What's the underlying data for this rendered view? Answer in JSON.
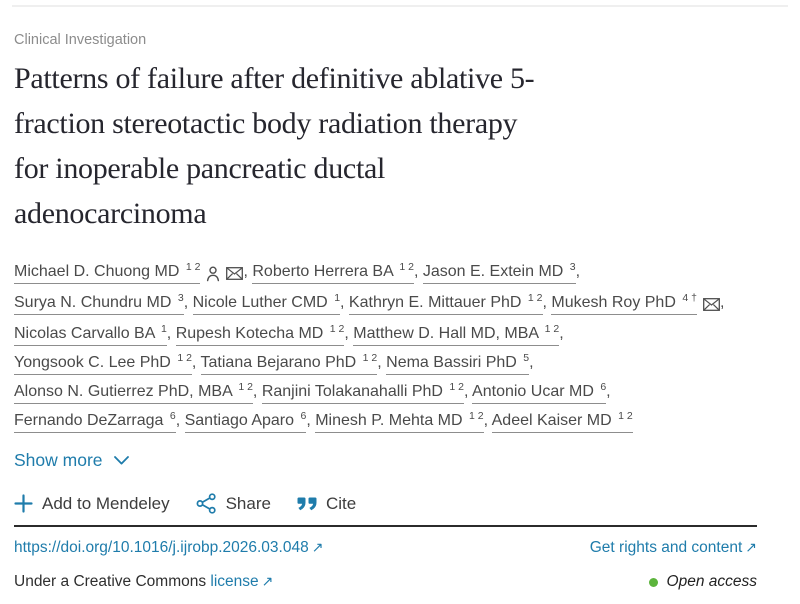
{
  "header": {
    "category_label": "Clinical Investigation"
  },
  "title_lines": [
    "Patterns of failure after definitive ablative 5-",
    "fraction stereotactic body radiation therapy",
    "for inoperable pancreatic ductal",
    "adenocarcinoma"
  ],
  "authors": {
    "lines": [
      [
        {
          "name": "Michael D. Chuong MD",
          "sup": "1 2",
          "icons": [
            "person",
            "envelope"
          ]
        },
        {
          "name": "Roberto Herrera BA",
          "sup": "1 2"
        },
        {
          "name": "Jason E. Extein MD",
          "sup": "3"
        }
      ],
      [
        {
          "name": "Surya N. Chundru MD",
          "sup": "3"
        },
        {
          "name": "Nicole Luther CMD",
          "sup": "1"
        },
        {
          "name": "Kathryn E. Mittauer PhD",
          "sup": "1 2"
        },
        {
          "name": "Mukesh Roy PhD",
          "sup": "4 †",
          "icons": [
            "envelope"
          ]
        }
      ],
      [
        {
          "name": "Nicolas Carvallo BA",
          "sup": "1"
        },
        {
          "name": "Rupesh Kotecha MD",
          "sup": "1 2"
        },
        {
          "name": "Matthew D. Hall MD, MBA",
          "sup": "1 2"
        }
      ],
      [
        {
          "name": "Yongsook C. Lee PhD",
          "sup": "1 2"
        },
        {
          "name": "Tatiana Bejarano PhD",
          "sup": "1 2"
        },
        {
          "name": "Nema Bassiri PhD",
          "sup": "5"
        }
      ],
      [
        {
          "name": "Alonso N. Gutierrez PhD, MBA",
          "sup": "1 2"
        },
        {
          "name": "Ranjini Tolakanahalli PhD",
          "sup": "1 2"
        },
        {
          "name": "Antonio Ucar MD",
          "sup": "6"
        }
      ],
      [
        {
          "name": "Fernando DeZarraga",
          "sup": "6"
        },
        {
          "name": "Santiago Aparo",
          "sup": "6"
        },
        {
          "name": "Minesh P. Mehta MD",
          "sup": "1 2"
        },
        {
          "name": "Adeel Kaiser MD",
          "sup": "1 2"
        }
      ]
    ]
  },
  "show_more": {
    "label": "Show more"
  },
  "actions": {
    "mendeley": "Add to Mendeley",
    "share": "Share",
    "cite": "Cite"
  },
  "footer_links": {
    "doi_label": "https://doi.org/10.1016/j.ijrobp.2026.03.048",
    "rights_label": "Get rights and content",
    "license_prefix": "Under a Creative Commons",
    "license_label": "license"
  },
  "access": {
    "label": "Open access",
    "dot_color": "#5cb43c"
  },
  "icons": {
    "external_link": "↗"
  },
  "colors": {
    "link_blue": "#1f7cab",
    "title_text": "#26262e",
    "body_text": "#4a4a4a",
    "category_text": "#8c8c8c",
    "divider_dark": "#2b2b2b",
    "open_access_green": "#5cb43c"
  }
}
